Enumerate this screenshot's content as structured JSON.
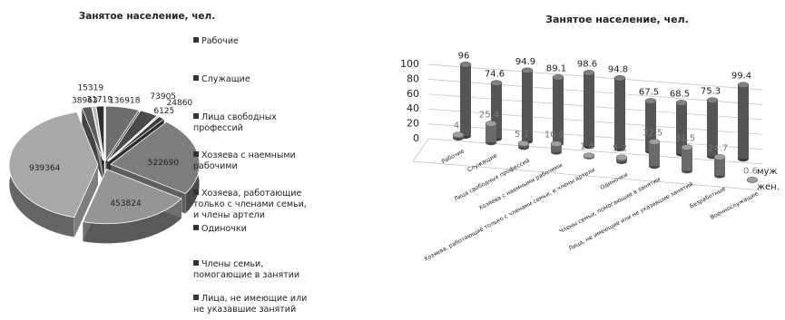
{
  "chart_data": [
    {
      "type": "pie",
      "title": "Занятое население, чел.",
      "categories": [
        "Рабочие",
        "Служащие",
        "Лица свободных профессий",
        "Хозяева с наемными рабочими",
        "Хозяева, работающие только с членами семьи, и члены артели",
        "Одиночки",
        "Члены семьи, помогающие в занятии",
        "Лица, не имеющие или не указавшие занятий",
        null,
        null
      ],
      "values": [
        136918,
        73905,
        6125,
        24860,
        522690,
        453824,
        939364,
        38963,
        15319,
        31719
      ],
      "colors": [
        "#6e6e6e",
        "#4a4a4a",
        "#8a8a8a",
        "#3a3a3a",
        "#7d7d7d",
        "#959595",
        "#a8a8a8",
        "#5a5a5a",
        "#b5b5b5",
        "#2e2e2e"
      ]
    },
    {
      "type": "bar",
      "title": "Занятое население, чел.",
      "categories": [
        "Рабочие",
        "Служащие",
        "Лица свободных профессий",
        "Хозяева с наемными рабочими",
        "Хозяева, работающие только с членами семьи, и члены артели",
        "Одиночки",
        "Члены семьи, помогающие в занятии",
        "Лица, не имеющие или не указавшие занятий",
        "Безработные",
        "Военнослужащие"
      ],
      "series": [
        {
          "name": "муж",
          "color": "#555555",
          "values": [
            96,
            74.6,
            94.9,
            89.1,
            98.6,
            94.8,
            67.5,
            68.5,
            75.3,
            99.4
          ]
        },
        {
          "name": "жен.",
          "color": "#6a6a6a",
          "values": [
            4,
            25.4,
            5.1,
            10.9,
            1.4,
            5.2,
            32.5,
            31.5,
            24.7,
            0.6
          ]
        }
      ],
      "ylim": [
        0,
        100
      ],
      "yticks": [
        0,
        20,
        40,
        60,
        80,
        100
      ],
      "grid": true
    }
  ]
}
